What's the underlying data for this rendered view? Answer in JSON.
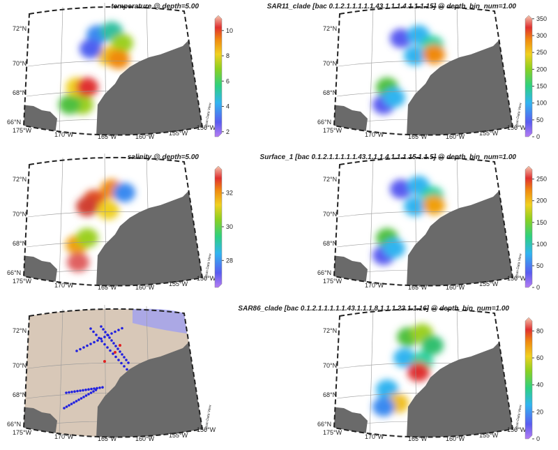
{
  "panels": [
    {
      "title": "temperature @ depth=5.00",
      "colorbar": {
        "ticks": [
          2,
          4,
          6,
          8,
          10
        ],
        "range": [
          1.6,
          11.2
        ]
      }
    },
    {
      "title": "SAR11_clade [bac 0.1.2.1.1.1.1.1.43.1.1.1.4.1.1.1.15] @ depth_bin_num=1.00",
      "colorbar": {
        "ticks": [
          0,
          50,
          100,
          150,
          200,
          250,
          300,
          350
        ],
        "range": [
          0,
          360
        ]
      }
    },
    {
      "title": "salinity @ depth=5.00",
      "colorbar": {
        "ticks": [
          28,
          30,
          32
        ],
        "range": [
          26.4,
          33.6
        ]
      }
    },
    {
      "title": "Surface_1 [bac 0.1.2.1.1.1.1.1.43.1.1.1.4.1.1.1.15.1.1.5] @ depth_bin_num=1.00",
      "colorbar": {
        "ticks": [
          0,
          50,
          100,
          150,
          200,
          250
        ],
        "range": [
          0,
          280
        ]
      }
    },
    {
      "title": "SAR86_clade [bac 0.1.2.1.1.1.1.1.43.1.1.1.8.1.1.1.23.1.1.16] @ depth_bin_num=1.00",
      "colorbar": {
        "ticks": [
          0,
          20,
          40,
          60,
          80
        ],
        "range": [
          0,
          90
        ]
      }
    }
  ],
  "map_labels": {
    "lat": [
      "72°N",
      "70°N",
      "68°N",
      "66°N"
    ],
    "lon": [
      "175°W",
      "170°W",
      "165°W",
      "160°W",
      "155°W",
      "150°W"
    ]
  },
  "watermark": "Ocean Data View"
}
